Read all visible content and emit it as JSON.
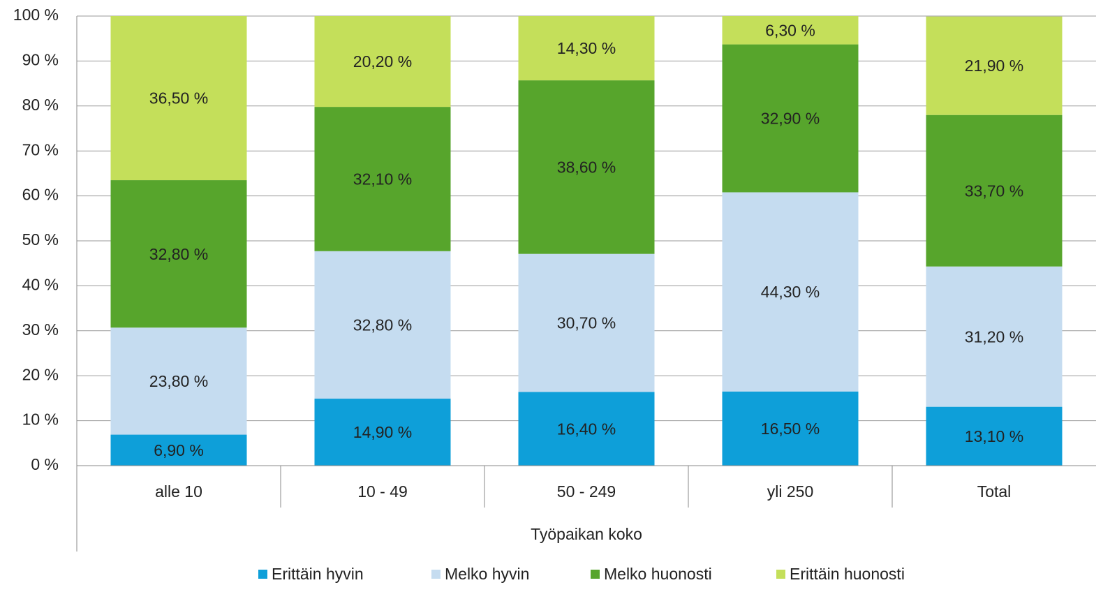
{
  "chart_data": {
    "type": "stacked_bar",
    "x_label": "Työpaikan koko",
    "categories": [
      "alle 10",
      "10 - 49",
      "50 - 249",
      "yli 250",
      "Total"
    ],
    "series": [
      {
        "name": "Erittäin hyvin",
        "color": "#0e9fd9",
        "values": [
          6.9,
          14.9,
          16.4,
          16.5,
          13.1
        ],
        "value_labels": [
          "6,90 %",
          "14,90 %",
          "16,40 %",
          "16,50 %",
          "13,10 %"
        ]
      },
      {
        "name": "Melko hyvin",
        "color": "#c5dcf0",
        "values": [
          23.8,
          32.8,
          30.7,
          44.3,
          31.2
        ],
        "value_labels": [
          "23,80 %",
          "32,80 %",
          "30,70 %",
          "44,30 %",
          "31,20 %"
        ]
      },
      {
        "name": "Melko huonosti",
        "color": "#57a52c",
        "values": [
          32.8,
          32.1,
          38.6,
          32.9,
          33.7
        ],
        "value_labels": [
          "32,80 %",
          "32,10 %",
          "38,60 %",
          "32,90 %",
          "33,70 %"
        ]
      },
      {
        "name": "Erittäin huonosti",
        "color": "#c4df5a",
        "values": [
          36.5,
          20.2,
          14.3,
          6.3,
          21.9
        ],
        "value_labels": [
          "36,50 %",
          "20,20 %",
          "14,30 %",
          "6,30 %",
          "21,90 %"
        ]
      }
    ],
    "ylim": [
      0,
      100
    ],
    "yticks": [
      {
        "value": 0,
        "label": "0 %"
      },
      {
        "value": 10,
        "label": "10 %"
      },
      {
        "value": 20,
        "label": "20 %"
      },
      {
        "value": 30,
        "label": "30 %"
      },
      {
        "value": 40,
        "label": "40 %"
      },
      {
        "value": 50,
        "label": "50 %"
      },
      {
        "value": 60,
        "label": "60 %"
      },
      {
        "value": 70,
        "label": "70 %"
      },
      {
        "value": 80,
        "label": "80 %"
      },
      {
        "value": 90,
        "label": "90 %"
      },
      {
        "value": 100,
        "label": "100 %"
      }
    ],
    "grid": true,
    "legend": "bottom"
  }
}
